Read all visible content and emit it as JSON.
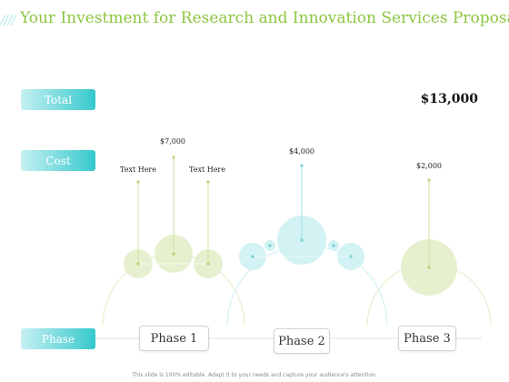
{
  "title": "Your Investment for Research and Innovation Services Proposal",
  "rows": {
    "total_label": "Total",
    "cost_label": "Cost",
    "phase_label": "Phase"
  },
  "total_value": "$13,000",
  "phases": {
    "p1": "Phase 1",
    "p2": "Phase 2",
    "p3": "Phase 3"
  },
  "costs": {
    "c1": "$7,000",
    "c2": "$4,000",
    "c3": "$2,000"
  },
  "text_here": {
    "left": "Text Here",
    "right": "Text Here"
  },
  "colors": {
    "accent_title": "#8cc63f",
    "pill_start": "#c6f0f2",
    "pill_end": "#35c9cc",
    "phase1_circle": "#e6f0cf",
    "phase2_circle": "#d3f2f3",
    "phase3_circle": "#e6f0cf"
  },
  "footer": "This slide is 100% editable. Adapt it to your needs and capture your audience's attention."
}
